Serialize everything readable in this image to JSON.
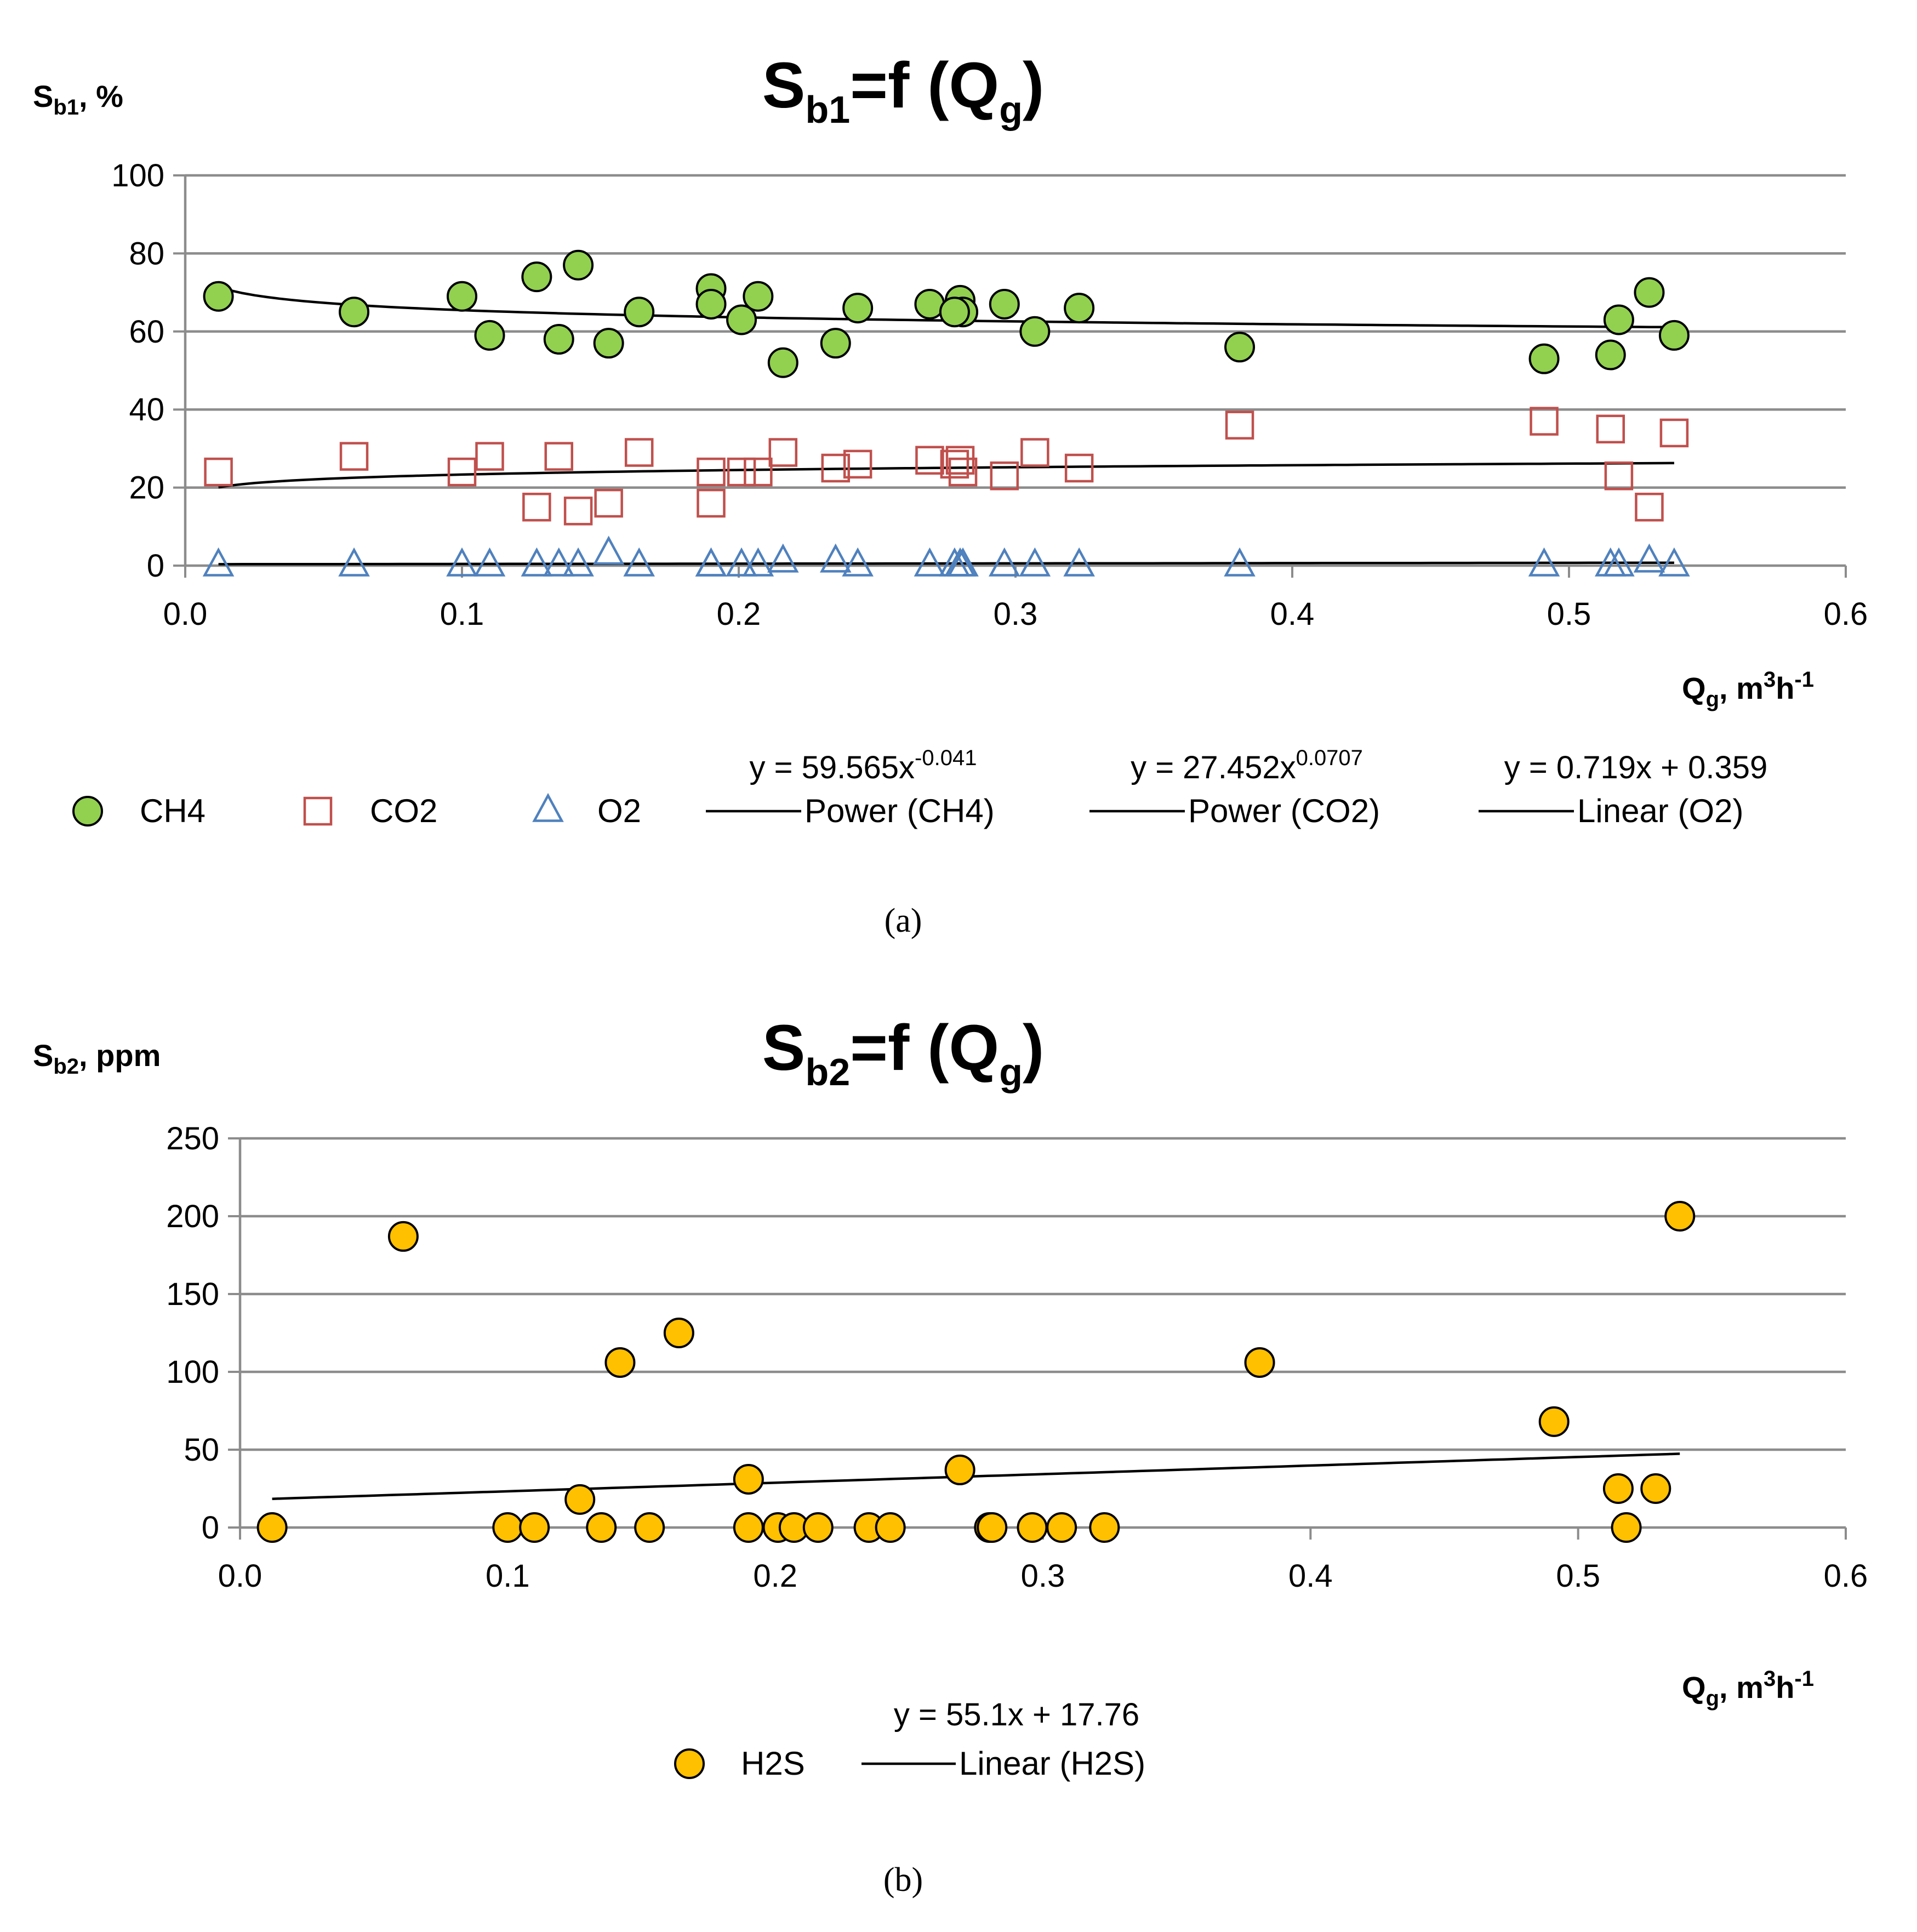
{
  "chart_data": [
    {
      "id": "a",
      "type": "scatter",
      "title": "Sb1=f (Qg)",
      "title_main": "S",
      "title_sub": "b1",
      "title_rest": "=f (Q",
      "title_sub2": "g",
      "title_end": ")",
      "ylabel_main": "S",
      "ylabel_sub": "b1",
      "ylabel_rest": ", %",
      "xlabel_main": "Q",
      "xlabel_sub": "g",
      "xlabel_rest": ", m",
      "xlabel_sup1": "3",
      "xlabel_h": "h",
      "xlabel_sup2": "-1",
      "xlim": [
        0,
        0.6
      ],
      "ylim": [
        0,
        100
      ],
      "xticks": [
        "0.0",
        "0.1",
        "0.2",
        "0.3",
        "0.4",
        "0.5",
        "0.6"
      ],
      "yticks": [
        "0",
        "20",
        "40",
        "60",
        "80",
        "100"
      ],
      "grid": "horizontal",
      "legend_position": "bottom",
      "series": [
        {
          "name": "CH4",
          "marker": "circle",
          "color": "#92D050",
          "x": [
            0.012,
            0.061,
            0.1,
            0.11,
            0.127,
            0.135,
            0.142,
            0.153,
            0.164,
            0.19,
            0.19,
            0.201,
            0.207,
            0.216,
            0.235,
            0.243,
            0.269,
            0.28,
            0.281,
            0.278,
            0.296,
            0.307,
            0.323,
            0.381,
            0.491,
            0.515,
            0.518,
            0.529,
            0.538
          ],
          "y": [
            69,
            65,
            69,
            59,
            74,
            58,
            77,
            57,
            65,
            71,
            67,
            63,
            69,
            52,
            57,
            66,
            67,
            68,
            65,
            65,
            67,
            60,
            66,
            56,
            53,
            54,
            63,
            70,
            59
          ]
        },
        {
          "name": "CO2",
          "marker": "square",
          "color": "#C0504D",
          "x": [
            0.012,
            0.061,
            0.1,
            0.11,
            0.127,
            0.135,
            0.142,
            0.153,
            0.164,
            0.19,
            0.19,
            0.201,
            0.207,
            0.216,
            0.235,
            0.243,
            0.269,
            0.278,
            0.28,
            0.281,
            0.296,
            0.307,
            0.323,
            0.381,
            0.491,
            0.515,
            0.518,
            0.529,
            0.538
          ],
          "y": [
            24,
            28,
            24,
            28,
            15,
            28,
            14,
            16,
            29,
            24,
            16,
            24,
            24,
            29,
            25,
            26,
            27,
            26,
            27,
            24,
            23,
            29,
            25,
            36,
            37,
            35,
            23,
            15,
            34
          ]
        },
        {
          "name": "O2",
          "marker": "triangle",
          "color": "#4F81BD",
          "x": [
            0.012,
            0.061,
            0.1,
            0.11,
            0.127,
            0.135,
            0.142,
            0.153,
            0.164,
            0.19,
            0.19,
            0.201,
            0.207,
            0.216,
            0.235,
            0.243,
            0.269,
            0.278,
            0.28,
            0.281,
            0.296,
            0.307,
            0.323,
            0.381,
            0.491,
            0.515,
            0.518,
            0.529,
            0.538
          ],
          "y": [
            0,
            0,
            0,
            0,
            0,
            0,
            0,
            3,
            0,
            0,
            0,
            0,
            0,
            1,
            1,
            0,
            0,
            0,
            0,
            0,
            0,
            0,
            0,
            0,
            0,
            0,
            0,
            1,
            0
          ]
        }
      ],
      "trendlines": [
        {
          "name": "Power (CH4)",
          "kind": "power",
          "a": 59.565,
          "b": -0.041,
          "equation_base": "y = 59.565x",
          "equation_exp": "-0.041"
        },
        {
          "name": "Power (CO2)",
          "kind": "power",
          "a": 27.452,
          "b": 0.0707,
          "equation_base": "y = 27.452x",
          "equation_exp": "0.0707"
        },
        {
          "name": "Linear (O2)",
          "kind": "linear",
          "a": 0.719,
          "b": 0.359,
          "equation_base": "y = 0.719x + 0.359",
          "equation_exp": ""
        }
      ],
      "trend_range": [
        0.012,
        0.538
      ],
      "caption_open": "(",
      "caption_letter": "a",
      "caption_close": ")"
    },
    {
      "id": "b",
      "type": "scatter",
      "title": "Sb2=f (Qg)",
      "title_main": "S",
      "title_sub": "b2",
      "title_rest": "=f (Q",
      "title_sub2": "g",
      "title_end": ")",
      "ylabel_main": "S",
      "ylabel_sub": "b2",
      "ylabel_rest": ", ppm",
      "xlabel_main": "Q",
      "xlabel_sub": "g",
      "xlabel_rest": ", m",
      "xlabel_sup1": "3",
      "xlabel_h": "h",
      "xlabel_sup2": "-1",
      "xlim": [
        0,
        0.6
      ],
      "ylim": [
        0,
        250
      ],
      "xticks": [
        "0.0",
        "0.1",
        "0.2",
        "0.3",
        "0.4",
        "0.5",
        "0.6"
      ],
      "yticks": [
        "0",
        "50",
        "100",
        "150",
        "200",
        "250"
      ],
      "grid": "horizontal",
      "legend_position": "bottom",
      "series": [
        {
          "name": "H2S",
          "marker": "circle",
          "color": "#FFC000",
          "x": [
            0.012,
            0.061,
            0.1,
            0.11,
            0.127,
            0.135,
            0.142,
            0.153,
            0.164,
            0.19,
            0.19,
            0.201,
            0.207,
            0.216,
            0.235,
            0.243,
            0.269,
            0.28,
            0.281,
            0.296,
            0.307,
            0.323,
            0.381,
            0.491,
            0.515,
            0.518,
            0.529,
            0.538
          ],
          "y": [
            0,
            187,
            0,
            0,
            18,
            0,
            106,
            0,
            125,
            31,
            0,
            0,
            0,
            0,
            0,
            0,
            37,
            0,
            0,
            0,
            0,
            0,
            106,
            68,
            25,
            0,
            25,
            200
          ]
        }
      ],
      "trendlines": [
        {
          "name": "Linear (H2S)",
          "kind": "linear",
          "a": 55.1,
          "b": 17.76,
          "equation_base": "y = 55.1x + 17.76",
          "equation_exp": ""
        }
      ],
      "trend_range": [
        0.012,
        0.538
      ],
      "caption_open": "(",
      "caption_letter": "b",
      "caption_close": ")"
    }
  ]
}
